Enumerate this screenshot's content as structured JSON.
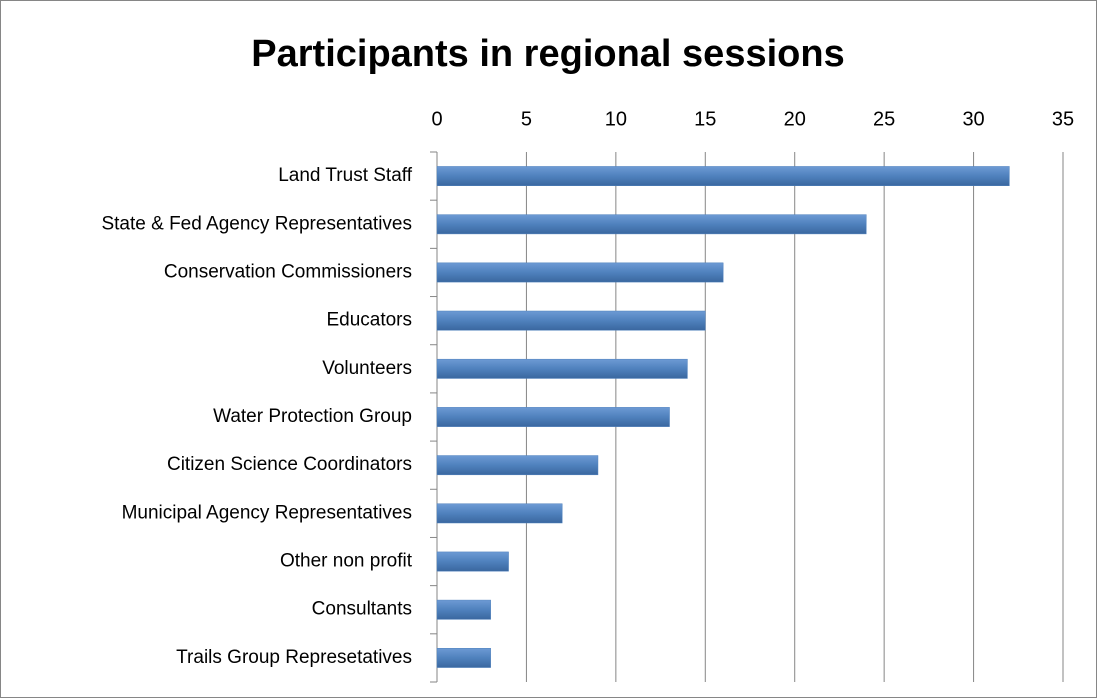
{
  "chart_data": {
    "type": "bar",
    "orientation": "horizontal",
    "title": "Participants in regional sessions",
    "categories": [
      "Land Trust Staff",
      "State & Fed Agency Representatives",
      "Conservation Commissioners",
      "Educators",
      "Volunteers",
      "Water Protection Group",
      "Citizen Science Coordinators",
      "Municipal Agency Representatives",
      "Other non profit",
      "Consultants",
      "Trails Group Represetatives"
    ],
    "values": [
      32,
      24,
      16,
      15,
      14,
      13,
      9,
      7,
      4,
      3,
      3
    ],
    "color": "#4f81bd",
    "xlim": [
      0,
      35
    ],
    "xticks": [
      0,
      5,
      10,
      15,
      20,
      25,
      30,
      35
    ],
    "grid": true,
    "x_axis_position": "top"
  }
}
